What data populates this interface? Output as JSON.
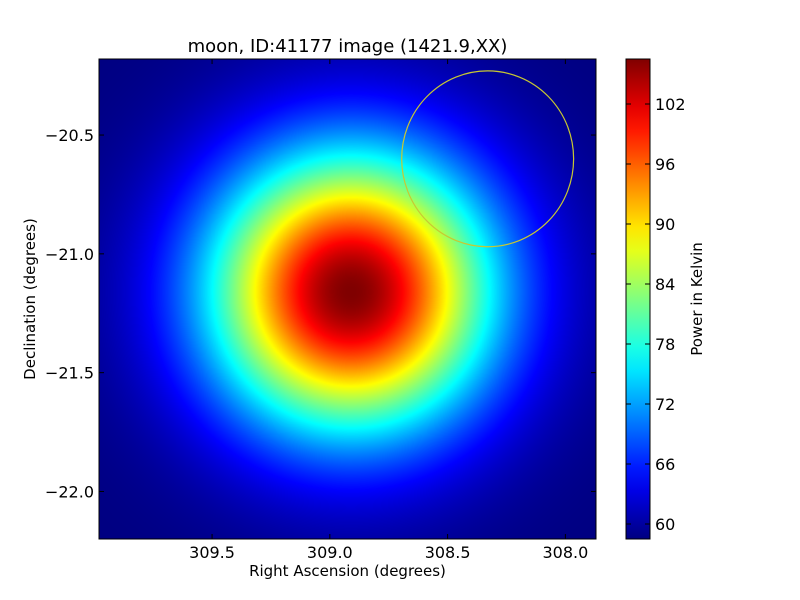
{
  "chart_data": {
    "type": "heatmap",
    "title": "moon, ID:41177 image (1421.9,XX)",
    "xlabel": "Right Ascension (degrees)",
    "ylabel": "Declination (degrees)",
    "colorbar_label": "Power in Kelvin",
    "colormap": "jet",
    "xlim": [
      309.98,
      307.87
    ],
    "ylim": [
      -22.2,
      -20.18
    ],
    "x_ticks": [
      {
        "value": 309.5,
        "label": "309.5"
      },
      {
        "value": 309.0,
        "label": "309.0"
      },
      {
        "value": 308.5,
        "label": "308.5"
      },
      {
        "value": 308.0,
        "label": "308.0"
      }
    ],
    "y_ticks": [
      {
        "value": -20.5,
        "label": "−20.5"
      },
      {
        "value": -21.0,
        "label": "−21.0"
      },
      {
        "value": -21.5,
        "label": "−21.5"
      },
      {
        "value": -22.0,
        "label": "−22.0"
      }
    ],
    "colorbar_range": [
      58.5,
      106.5
    ],
    "colorbar_ticks": [
      {
        "value": 60,
        "label": "60"
      },
      {
        "value": 66,
        "label": "66"
      },
      {
        "value": 72,
        "label": "72"
      },
      {
        "value": 78,
        "label": "78"
      },
      {
        "value": 84,
        "label": "84"
      },
      {
        "value": 90,
        "label": "90"
      },
      {
        "value": 96,
        "label": "96"
      },
      {
        "value": 102,
        "label": "102"
      }
    ],
    "source": {
      "ra": 308.91,
      "dec": -21.16,
      "peak": 106.5,
      "background": 58.5,
      "sigma_ra": 0.42,
      "sigma_dec": 0.41
    },
    "circle": {
      "ra": 308.33,
      "dec": -20.6,
      "radius_ra": 0.365,
      "radius_dec": 0.37,
      "color": "#c8c832"
    }
  }
}
